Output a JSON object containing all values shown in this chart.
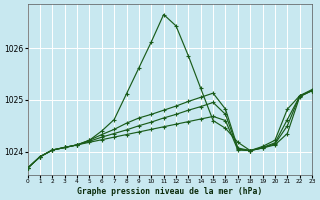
{
  "title": "Graphe pression niveau de la mer (hPa)",
  "bg_color": "#c8e8f0",
  "grid_color": "#ffffff",
  "line_color": "#1a5c1a",
  "xlim": [
    0,
    23
  ],
  "ylim": [
    1023.55,
    1026.85
  ],
  "yticks": [
    1024,
    1025,
    1026
  ],
  "xtick_labels": [
    "0",
    "1",
    "2",
    "3",
    "4",
    "5",
    "6",
    "7",
    "8",
    "9",
    "10",
    "11",
    "12",
    "13",
    "14",
    "15",
    "16",
    "17",
    "18",
    "19",
    "20",
    "21",
    "22",
    "23"
  ],
  "series": [
    [
      1023.68,
      1023.9,
      1024.03,
      1024.08,
      1024.13,
      1024.22,
      1024.4,
      1024.62,
      1025.12,
      1025.62,
      1026.12,
      1026.65,
      1026.43,
      1025.85,
      1025.22,
      1024.6,
      1024.45,
      1024.18,
      1024.02,
      1024.07,
      1024.15,
      1024.5,
      1025.08,
      1025.18
    ],
    [
      1023.68,
      1023.9,
      1024.03,
      1024.08,
      1024.13,
      1024.18,
      1024.23,
      1024.28,
      1024.33,
      1024.38,
      1024.43,
      1024.48,
      1024.53,
      1024.58,
      1024.63,
      1024.68,
      1024.6,
      1024.03,
      1024.02,
      1024.07,
      1024.13,
      1024.35,
      1025.06,
      1025.18
    ],
    [
      1023.68,
      1023.9,
      1024.03,
      1024.08,
      1024.13,
      1024.2,
      1024.28,
      1024.35,
      1024.42,
      1024.5,
      1024.57,
      1024.65,
      1024.72,
      1024.8,
      1024.87,
      1024.95,
      1024.72,
      1024.05,
      1024.02,
      1024.08,
      1024.17,
      1024.62,
      1025.07,
      1025.18
    ],
    [
      1023.68,
      1023.9,
      1024.03,
      1024.08,
      1024.13,
      1024.22,
      1024.33,
      1024.43,
      1024.55,
      1024.65,
      1024.72,
      1024.8,
      1024.88,
      1024.97,
      1025.05,
      1025.13,
      1024.82,
      1024.07,
      1024.02,
      1024.1,
      1024.22,
      1024.82,
      1025.08,
      1025.2
    ]
  ]
}
